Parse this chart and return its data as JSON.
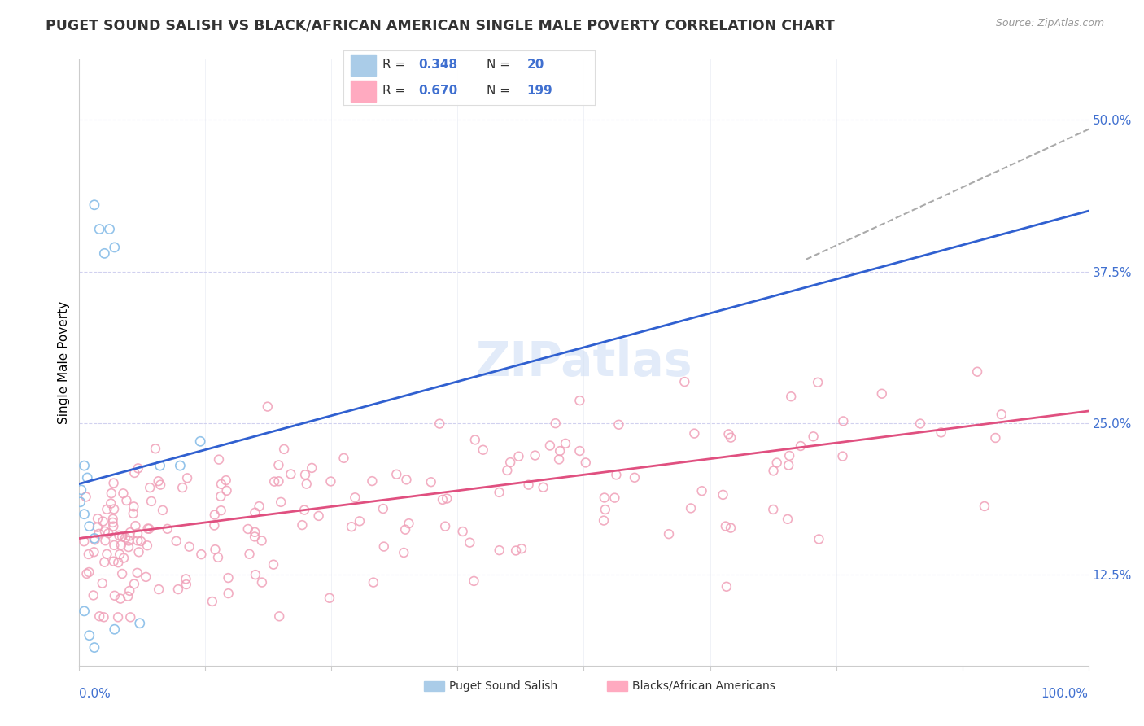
{
  "title": "PUGET SOUND SALISH VS BLACK/AFRICAN AMERICAN SINGLE MALE POVERTY CORRELATION CHART",
  "source": "Source: ZipAtlas.com",
  "ylabel": "Single Male Poverty",
  "yticks": [
    0.125,
    0.25,
    0.375,
    0.5
  ],
  "ytick_labels": [
    "12.5%",
    "25.0%",
    "37.5%",
    "50.0%"
  ],
  "xlim": [
    0.0,
    1.0
  ],
  "ylim": [
    0.05,
    0.55
  ],
  "blue_color": "#87bde8",
  "pink_color": "#f0a0b8",
  "blue_line_color": "#3060d0",
  "pink_line_color": "#e05080",
  "dashed_line_color": "#aaaaaa",
  "axis_label_color": "#4070d0",
  "watermark": "ZIPatlas",
  "blue_R": "0.348",
  "blue_N": "20",
  "pink_R": "0.670",
  "pink_N": "199",
  "blue_line_x": [
    0.0,
    1.0
  ],
  "blue_line_y": [
    0.2,
    0.425
  ],
  "pink_line_x": [
    0.0,
    1.0
  ],
  "pink_line_y": [
    0.155,
    0.26
  ],
  "dashed_line_x": [
    0.72,
    1.02
  ],
  "dashed_line_y": [
    0.385,
    0.5
  ],
  "blue_pts_x": [
    0.015,
    0.02,
    0.025,
    0.03,
    0.035,
    0.005,
    0.008,
    0.002,
    0.001,
    0.005,
    0.01,
    0.015,
    0.12,
    0.08,
    0.1,
    0.005,
    0.01,
    0.015,
    0.06,
    0.035
  ],
  "blue_pts_y": [
    0.43,
    0.41,
    0.39,
    0.41,
    0.395,
    0.215,
    0.205,
    0.195,
    0.185,
    0.175,
    0.165,
    0.155,
    0.235,
    0.215,
    0.215,
    0.095,
    0.075,
    0.065,
    0.085,
    0.08
  ],
  "title_fontsize": 12.5,
  "source_fontsize": 9,
  "tick_fontsize": 11,
  "ylabel_fontsize": 11
}
